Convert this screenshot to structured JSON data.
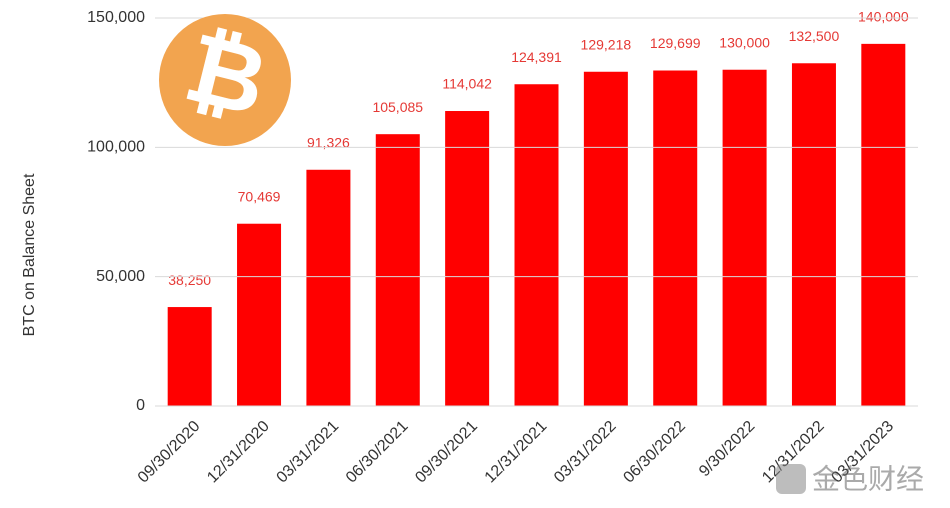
{
  "chart_data": {
    "type": "bar",
    "y_label": "BTC on Balance Sheet",
    "categories": [
      "09/30/2020",
      "12/31/2020",
      "03/31/2021",
      "06/30/2021",
      "09/30/2021",
      "12/31/2021",
      "03/31/2022",
      "06/30/2022",
      "9/30/2022",
      "12/31/2022",
      "03/31/2023"
    ],
    "values": [
      38250,
      70469,
      91326,
      105085,
      114042,
      124391,
      129218,
      129699,
      130000,
      132500,
      140000
    ],
    "value_labels": [
      "38,250",
      "70,469",
      "91,326",
      "105,085",
      "114,042",
      "124,391",
      "129,218",
      "129,699",
      "130,000",
      "132,500",
      "140,000"
    ],
    "color": "#ff0000",
    "ylim": [
      0,
      150000
    ],
    "yticks": [
      0,
      {
        "value": 50000,
        "label": "50,000"
      },
      {
        "value": 100000,
        "label": "100,000"
      },
      {
        "value": 150000,
        "label": "150,000"
      }
    ],
    "grid": true
  },
  "watermark": "金色财经"
}
